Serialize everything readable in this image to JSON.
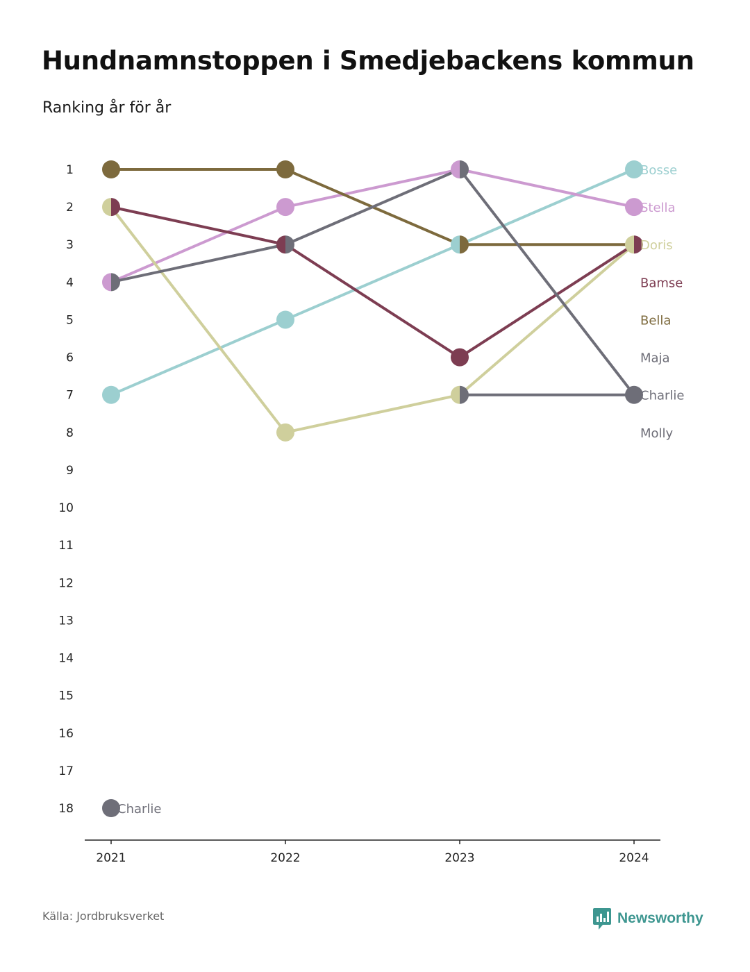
{
  "title": "Hundnamnstoppen i Smedjebackens kommun",
  "subtitle": "Ranking år för år",
  "footer": {
    "source": "Källa: Jordbruksverket",
    "brand": "Newsworthy"
  },
  "colors": {
    "brand": "#3d9690",
    "axis": "#222222"
  },
  "icons": {
    "brand_logo": "bar-chart-bubble-icon"
  },
  "chart_data": {
    "type": "line",
    "x": [
      2021,
      2022,
      2023,
      2024
    ],
    "y_ticks": [
      1,
      2,
      3,
      4,
      5,
      6,
      7,
      8,
      9,
      10,
      11,
      12,
      13,
      14,
      15,
      16,
      17,
      18
    ],
    "ylim": [
      1,
      18
    ],
    "y_inverted": true,
    "grid": false,
    "legend": "right-end-labels",
    "series": [
      {
        "name": "Bosse",
        "color": "#9ccfd0",
        "values": [
          7,
          5,
          3,
          1
        ]
      },
      {
        "name": "Stella",
        "color": "#cc9ad0",
        "values": [
          4,
          2,
          1,
          2
        ]
      },
      {
        "name": "Doris",
        "color": "#cfcf9c",
        "values": [
          2,
          8,
          7,
          3
        ]
      },
      {
        "name": "Bamse",
        "color": "#7d3d52",
        "values": [
          2,
          3,
          6,
          3
        ]
      },
      {
        "name": "Bella",
        "color": "#7d6a3d",
        "values": [
          1,
          1,
          3,
          3
        ]
      },
      {
        "name": "Maja",
        "color": "#6e6e78",
        "values": [
          4,
          3,
          1,
          7
        ]
      },
      {
        "name": "Charlie",
        "color": "#6e6e78",
        "values": [
          18,
          null,
          7,
          7
        ]
      },
      {
        "name": "Molly",
        "color": "#6e6e78",
        "values": [
          null,
          null,
          null,
          null
        ]
      }
    ],
    "annotations": [
      {
        "text": "Charlie",
        "x": 2021,
        "y": 18
      }
    ]
  }
}
